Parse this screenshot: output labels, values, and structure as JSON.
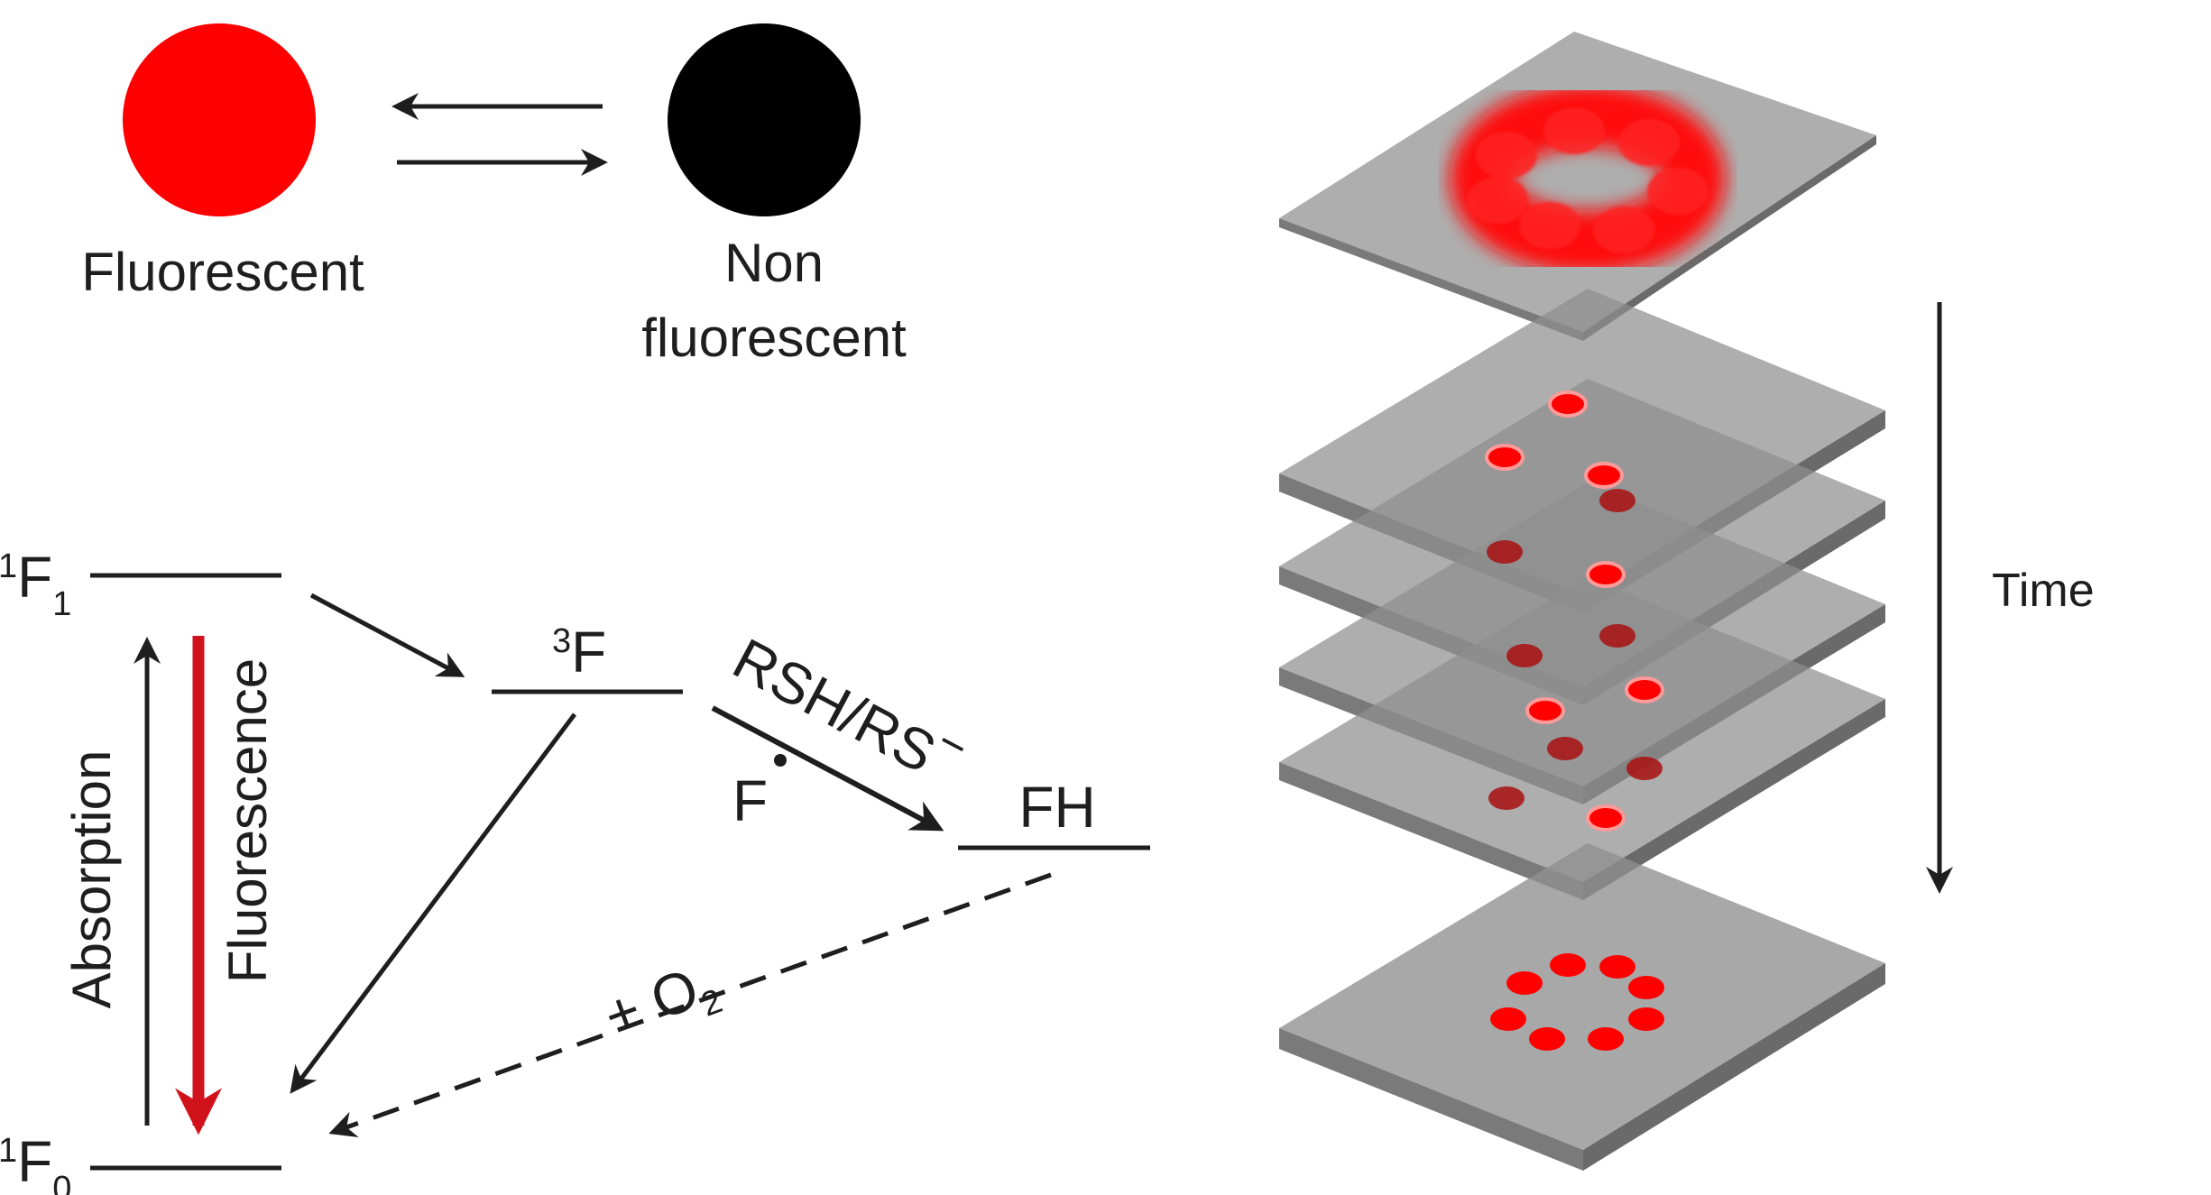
{
  "states": {
    "fluorescent_label": "Fluorescent",
    "non_fluorescent_label_line1": "Non",
    "non_fluorescent_label_line2": "fluorescent",
    "fluorescent_color": "#ff0000",
    "non_fluorescent_color": "#000000"
  },
  "energy_diagram": {
    "s1": {
      "sup": "1",
      "base": "F",
      "sub": "1"
    },
    "s0": {
      "sup": "1",
      "base": "F",
      "sub": "0"
    },
    "triplet": {
      "sup": "3",
      "base": "F"
    },
    "reduced": "FH",
    "reductant": "RSH/RS",
    "reductant_charge": "−",
    "radical": "F",
    "oxygen_prefix": "+ O",
    "oxygen_sub": "2",
    "absorption_label": "Absorption",
    "fluorescence_label": "Fluorescence",
    "fluorescence_arrow_color": "#d0121b"
  },
  "time_stack": {
    "time_label": "Time",
    "plane_color": "#8f8f8f",
    "spot_color": "#ff0000"
  }
}
